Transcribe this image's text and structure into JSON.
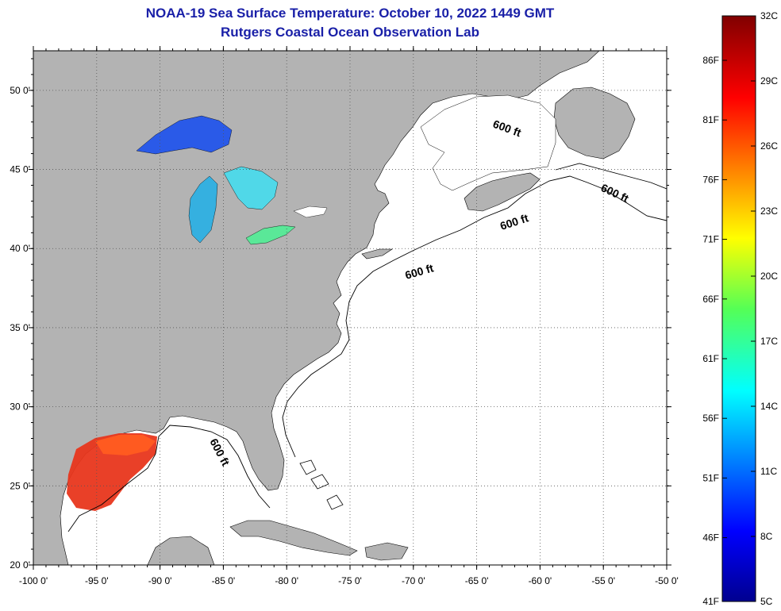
{
  "header": {
    "title": "NOAA-19 Sea Surface Temperature:  October 10, 2022 1449 GMT",
    "subtitle": "Rutgers Coastal Ocean Observation Lab"
  },
  "map": {
    "lon_range": [
      -100,
      -50
    ],
    "lat_range": [
      20,
      52.5
    ],
    "lon_ticks": [
      "-100 0'",
      "-95 0'",
      "-90 0'",
      "-85 0'",
      "-80 0'",
      "-75 0'",
      "-70 0'",
      "-65 0'",
      "-60 0'",
      "-55 0'",
      "-50 0'"
    ],
    "lat_ticks": [
      "20 0'",
      "25 0'",
      "30 0'",
      "35 0'",
      "40 0'",
      "45 0'",
      "50 0'"
    ],
    "contour_labels": [
      "600 ft",
      "600 ft",
      "600 ft",
      "600 ft",
      "600 ft"
    ],
    "colors": {
      "land": "#b3b3b3",
      "ocean": "#ffffff",
      "grid": "#555555"
    }
  },
  "colorbar": {
    "celsius": [
      "32C",
      "29C",
      "26C",
      "23C",
      "20C",
      "17C",
      "14C",
      "11C",
      "8C",
      "5C"
    ],
    "fahrenheit": [
      "86F",
      "81F",
      "76F",
      "71F",
      "66F",
      "61F",
      "56F",
      "51F",
      "46F",
      "41F"
    ]
  }
}
